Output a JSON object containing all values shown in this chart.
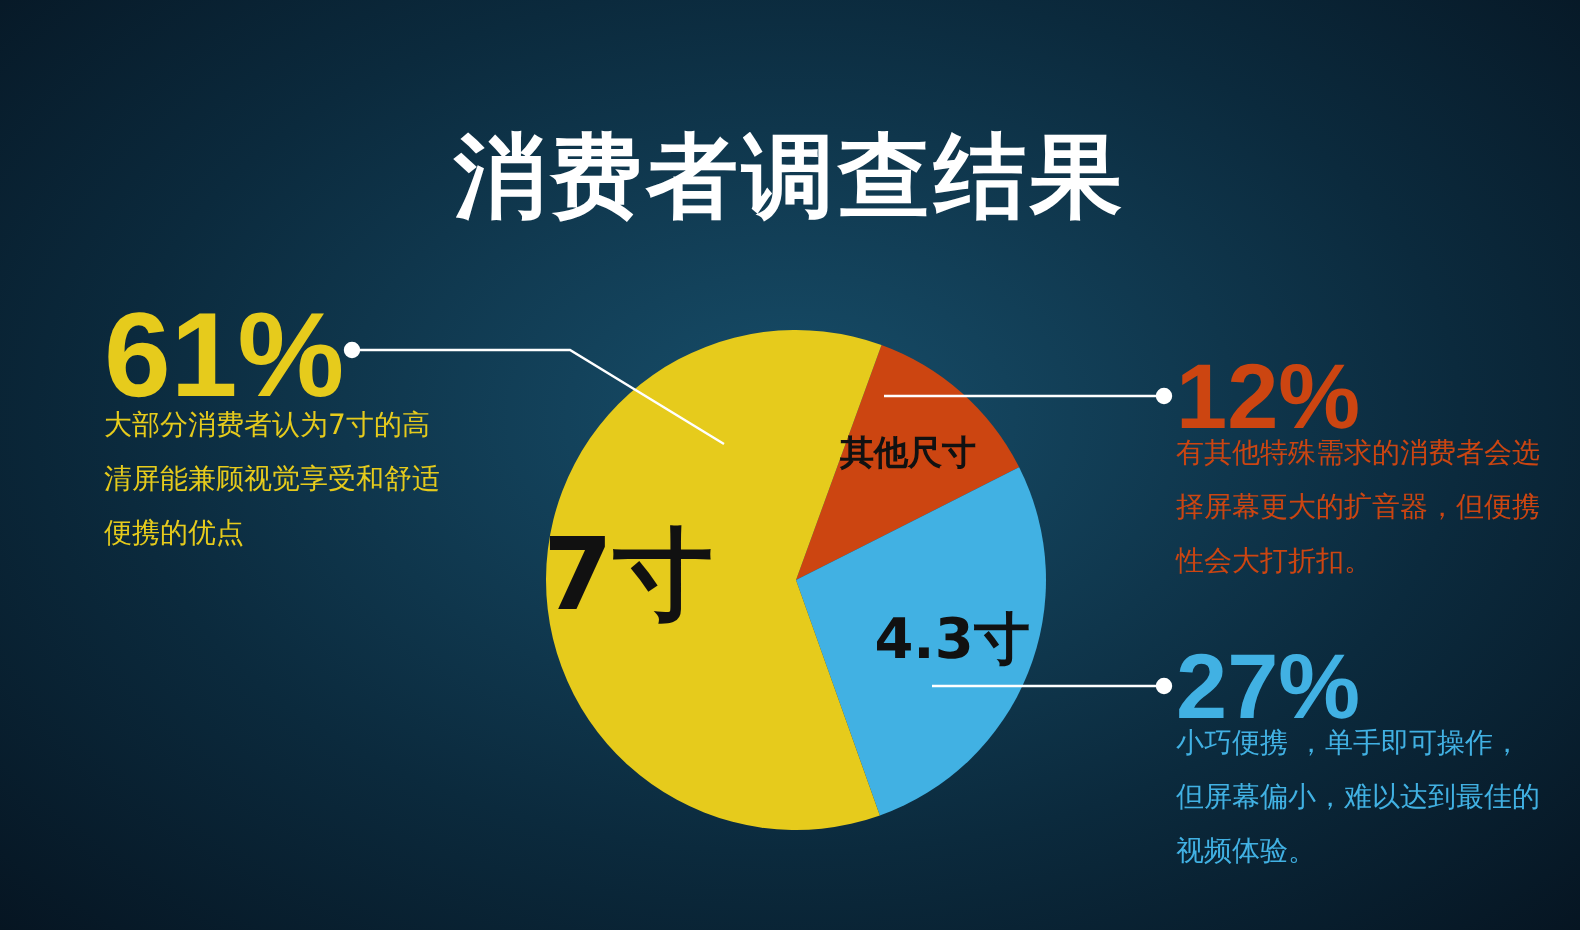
{
  "chart_data": {
    "type": "pie",
    "title": "消费者调查结果",
    "categories": [
      "其他尺寸",
      "4.3寸",
      "7寸"
    ],
    "values": [
      12,
      27,
      61
    ],
    "colors": [
      "#cc4511",
      "#41b1e3",
      "#e6cb1c"
    ],
    "value_labels": [
      "12%",
      "27%",
      "61%"
    ],
    "annotations": [
      "有其他特殊需求的消费者会选择屏幕更大的扩音器，但便携性会大打折扣。",
      "小巧便携 ，单手即可操作，但屏幕偏小，难以达到最佳的视频体验。",
      "大部分消费者认为7寸的高清屏能兼顾视觉享受和舒适便携的优点"
    ],
    "legend": false
  }
}
